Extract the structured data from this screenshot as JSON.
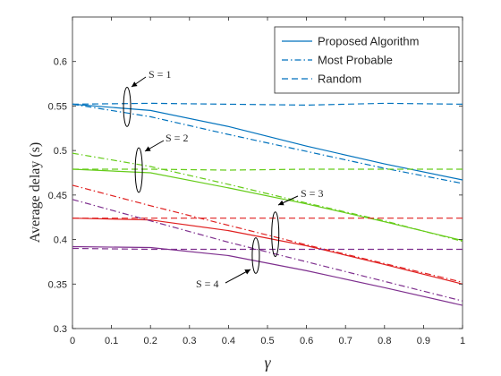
{
  "chart_data": {
    "type": "line",
    "xlabel": "γ",
    "ylabel": "Average delay  (s)",
    "xlim": [
      0,
      1
    ],
    "ylim": [
      0.3,
      0.65
    ],
    "xticks": [
      0,
      0.1,
      0.2,
      0.3,
      0.4,
      0.5,
      0.6,
      0.7,
      0.8,
      0.9,
      1
    ],
    "yticks": [
      0.3,
      0.35,
      0.4,
      0.45,
      0.5,
      0.55,
      0.6
    ],
    "grid": false,
    "legend": {
      "placement": "top-right",
      "entries": [
        {
          "label": "Proposed Algorithm",
          "style": "solid"
        },
        {
          "label": "Most Probable",
          "style": "dashdot"
        },
        {
          "label": "Random",
          "style": "dashed"
        }
      ]
    },
    "groups": [
      {
        "label": "S = 1",
        "color": "#0072BD",
        "series": [
          {
            "style": "solid",
            "x": [
              0,
              0.2,
              0.4,
              0.6,
              0.8,
              1.0
            ],
            "y": [
              0.552,
              0.545,
              0.527,
              0.505,
              0.485,
              0.467
            ]
          },
          {
            "style": "dashdot",
            "x": [
              0,
              0.2,
              0.4,
              0.6,
              0.8,
              1.0
            ],
            "y": [
              0.552,
              0.538,
              0.518,
              0.499,
              0.48,
              0.463
            ]
          },
          {
            "style": "dashed",
            "x": [
              0,
              0.2,
              0.4,
              0.6,
              0.8,
              1.0
            ],
            "y": [
              0.552,
              0.553,
              0.552,
              0.551,
              0.553,
              0.552
            ]
          }
        ]
      },
      {
        "label": "S = 2",
        "color": "#66CC1A",
        "series": [
          {
            "style": "solid",
            "x": [
              0,
              0.2,
              0.4,
              0.6,
              0.8,
              1.0
            ],
            "y": [
              0.479,
              0.475,
              0.458,
              0.44,
              0.42,
              0.399
            ]
          },
          {
            "style": "dashdot",
            "x": [
              0,
              0.2,
              0.4,
              0.6,
              0.8,
              1.0
            ],
            "y": [
              0.497,
              0.482,
              0.462,
              0.441,
              0.421,
              0.398
            ]
          },
          {
            "style": "dashed",
            "x": [
              0,
              0.2,
              0.4,
              0.6,
              0.8,
              1.0
            ],
            "y": [
              0.479,
              0.479,
              0.478,
              0.479,
              0.479,
              0.479
            ]
          }
        ]
      },
      {
        "label": "S = 3",
        "color": "#E02020",
        "series": [
          {
            "style": "solid",
            "x": [
              0,
              0.2,
              0.4,
              0.6,
              0.8,
              1.0
            ],
            "y": [
              0.424,
              0.422,
              0.41,
              0.393,
              0.372,
              0.35
            ]
          },
          {
            "style": "dashdot",
            "x": [
              0,
              0.2,
              0.4,
              0.6,
              0.8,
              1.0
            ],
            "y": [
              0.461,
              0.438,
              0.416,
              0.394,
              0.373,
              0.352
            ]
          },
          {
            "style": "dashed",
            "x": [
              0,
              0.2,
              0.4,
              0.6,
              0.8,
              1.0
            ],
            "y": [
              0.424,
              0.424,
              0.424,
              0.424,
              0.424,
              0.424
            ]
          }
        ]
      },
      {
        "label": "S = 4",
        "color": "#7E2F8E",
        "series": [
          {
            "style": "solid",
            "x": [
              0,
              0.2,
              0.4,
              0.6,
              0.8,
              1.0
            ],
            "y": [
              0.392,
              0.391,
              0.382,
              0.365,
              0.346,
              0.326
            ]
          },
          {
            "style": "dashdot",
            "x": [
              0,
              0.2,
              0.4,
              0.6,
              0.8,
              1.0
            ],
            "y": [
              0.445,
              0.421,
              0.397,
              0.375,
              0.353,
              0.331
            ]
          },
          {
            "style": "dashed",
            "x": [
              0,
              0.2,
              0.4,
              0.6,
              0.8,
              1.0
            ],
            "y": [
              0.39,
              0.389,
              0.389,
              0.389,
              0.389,
              0.389
            ]
          }
        ]
      }
    ],
    "annotations": [
      {
        "text": "S = 1",
        "ellipse_at": [
          0.14,
          0.549
        ],
        "ellipse_span": 0.022
      },
      {
        "text": "S = 2",
        "ellipse_at": [
          0.17,
          0.478
        ],
        "ellipse_span": 0.025
      },
      {
        "text": "S = 3",
        "ellipse_at": [
          0.52,
          0.406
        ],
        "ellipse_span": 0.025
      },
      {
        "text": "S = 4",
        "ellipse_at": [
          0.47,
          0.382
        ],
        "ellipse_span": 0.02
      }
    ]
  }
}
